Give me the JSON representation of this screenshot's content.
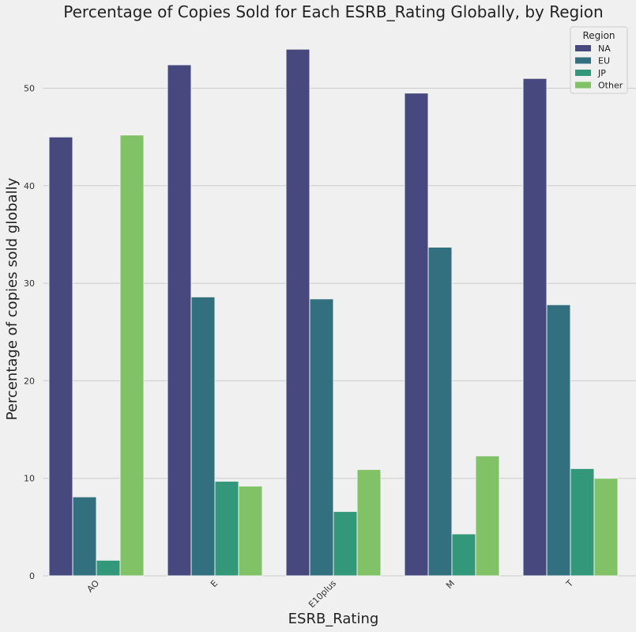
{
  "chart_data": {
    "type": "bar",
    "title": "Percentage of Copies Sold for Each ESRB_Rating Globally, by Region",
    "xlabel": "ESRB_Rating",
    "ylabel": "Percentage of copies sold globally",
    "categories": [
      "AO",
      "E",
      "E10plus",
      "M",
      "T"
    ],
    "ylim": [
      0,
      54
    ],
    "yticks": [
      0,
      10,
      20,
      30,
      40,
      50
    ],
    "grid": true,
    "legend_title": "Region",
    "legend_position": "top-right",
    "series": [
      {
        "name": "NA",
        "color": "#46487e",
        "values": [
          45.0,
          52.4,
          54.0,
          49.5,
          51.0
        ]
      },
      {
        "name": "EU",
        "color": "#33707f",
        "values": [
          8.1,
          28.6,
          28.4,
          33.7,
          27.8
        ]
      },
      {
        "name": "JP",
        "color": "#33977a",
        "values": [
          1.6,
          9.7,
          6.6,
          4.3,
          11.0
        ]
      },
      {
        "name": "Other",
        "color": "#80c265",
        "values": [
          45.2,
          9.2,
          10.9,
          12.3,
          10.0
        ]
      }
    ]
  }
}
